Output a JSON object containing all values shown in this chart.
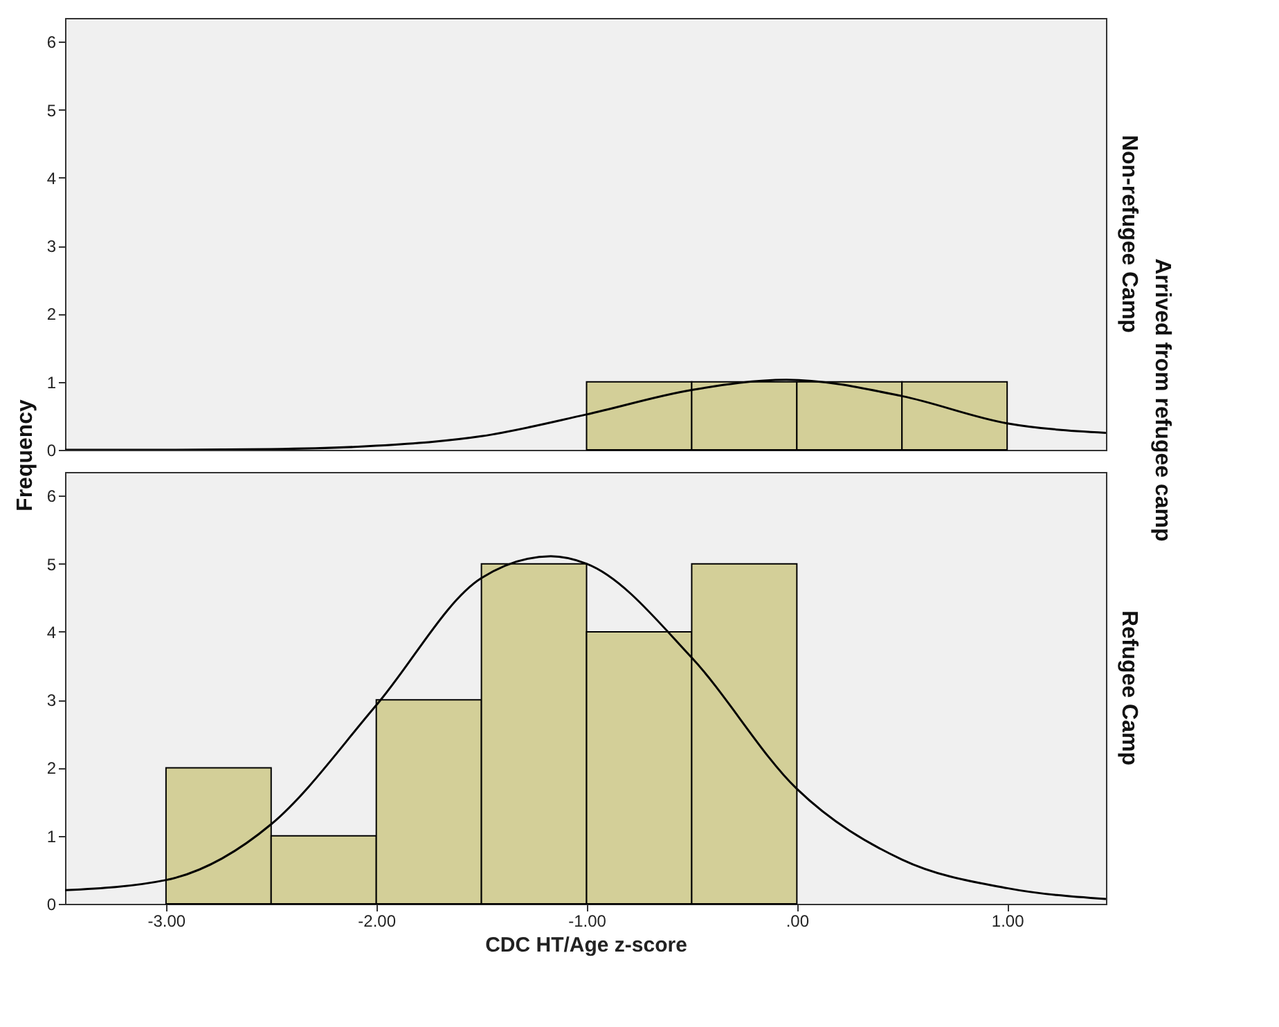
{
  "chart_data": [
    {
      "type": "histogram",
      "ylabel": "Frequency",
      "y2label": "Non-refugee Camp",
      "annotations": [
        "Arrived from refugee camp"
      ],
      "bins": [
        -1.0,
        -0.5,
        0.0,
        0.5,
        1.0
      ],
      "values": [
        1,
        1,
        1,
        1
      ],
      "color": "#d3cf98",
      "series": [
        {
          "type": "line",
          "color": "#000000",
          "x": [
            -3.48,
            -3.0,
            -2.5,
            -2.0,
            -1.5,
            -1.0,
            -0.5,
            -0.05,
            0.5,
            1.0,
            1.47
          ],
          "values": [
            0.0,
            0.0,
            0.01,
            0.06,
            0.2,
            0.52,
            0.88,
            1.03,
            0.79,
            0.39,
            0.25
          ]
        }
      ],
      "xlim": [
        -3.48,
        1.47
      ],
      "ylim": [
        0,
        6.35
      ],
      "yticks": [
        0,
        1,
        2,
        3,
        4,
        5,
        6
      ],
      "tick_labels": "y",
      "grid": false
    },
    {
      "type": "histogram",
      "xlabel": "CDC HT/Age z-score",
      "y2label": "Refugee Camp",
      "bins": [
        -3.0,
        -2.5,
        -2.0,
        -1.5,
        -1.0,
        -0.5,
        0.0
      ],
      "values": [
        2,
        1,
        3,
        5,
        4,
        5
      ],
      "color": "#d3cf98",
      "series": [
        {
          "type": "line",
          "color": "#000000",
          "x": [
            -3.48,
            -3.0,
            -2.5,
            -2.0,
            -1.5,
            -1.17,
            -1.0,
            -0.5,
            0.0,
            0.5,
            1.0,
            1.47
          ],
          "values": [
            0.2,
            0.35,
            1.17,
            2.92,
            4.79,
            5.11,
            5.0,
            3.62,
            1.69,
            0.65,
            0.23,
            0.07
          ]
        }
      ],
      "xlim": [
        -3.48,
        1.47
      ],
      "ylim": [
        0,
        6.35
      ],
      "xticks": [
        {
          "value": -3,
          "label": "-3.00"
        },
        {
          "value": -2,
          "label": "-2.00"
        },
        {
          "value": -1,
          "label": "-1.00"
        },
        {
          "value": 0,
          "label": ".00"
        },
        {
          "value": 1,
          "label": "1.00"
        }
      ],
      "yticks": [
        0,
        1,
        2,
        3,
        4,
        5,
        6
      ],
      "grid": false
    }
  ]
}
